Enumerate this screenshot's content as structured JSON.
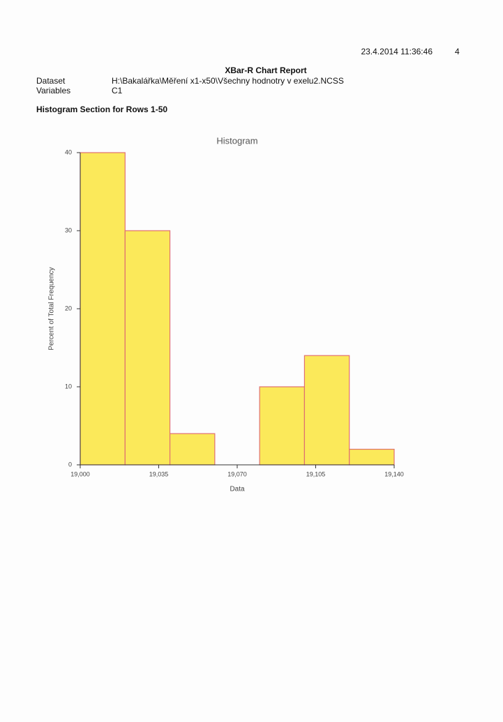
{
  "header": {
    "timestamp": "23.4.2014 11:36:46",
    "page": "4",
    "title": "XBar-R Chart Report",
    "dataset_label": "Dataset",
    "dataset_value": "H:\\Bakalářka\\Měření x1-x50\\Všechny hodnotry v exelu2.NCSS",
    "variables_label": "Variables",
    "variables_value": "C1"
  },
  "section_title": "Histogram Section for Rows 1-50",
  "chart_data": {
    "type": "histogram",
    "title": "Histogram",
    "x_label": "Data",
    "y_label": "Percent of Total Frequency",
    "bins": [
      19.0,
      19.02,
      19.04,
      19.06,
      19.08,
      19.1,
      19.12,
      19.14
    ],
    "values": [
      40,
      30,
      4,
      0,
      10,
      14,
      2
    ],
    "color": "#fbe95a",
    "edge_color": "#e07070",
    "xlim": [
      19.0,
      19.14
    ],
    "xticks": [
      {
        "value": 19.0,
        "label": "19,000"
      },
      {
        "value": 19.035,
        "label": "19,035"
      },
      {
        "value": 19.07,
        "label": "19,070"
      },
      {
        "value": 19.105,
        "label": "19,105"
      },
      {
        "value": 19.14,
        "label": "19,140"
      }
    ],
    "ylim": [
      0,
      40
    ],
    "yticks": [
      0,
      10,
      20,
      30,
      40
    ]
  }
}
